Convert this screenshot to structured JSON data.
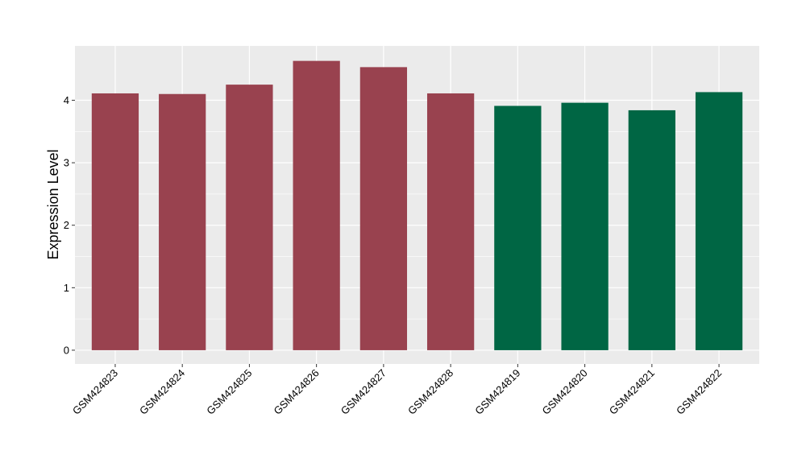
{
  "chart_data": {
    "type": "bar",
    "title": "",
    "xlabel": "",
    "ylabel": "Expression Level",
    "categories": [
      "GSM424823",
      "GSM424824",
      "GSM424825",
      "GSM424826",
      "GSM424827",
      "GSM424828",
      "GSM424819",
      "GSM424820",
      "GSM424821",
      "GSM424822"
    ],
    "values": [
      4.11,
      4.1,
      4.25,
      4.63,
      4.53,
      4.11,
      3.91,
      3.96,
      3.84,
      4.13
    ],
    "bar_groups": [
      0,
      0,
      0,
      0,
      0,
      0,
      1,
      1,
      1,
      1
    ],
    "group_colors": [
      "#99424f",
      "#006644"
    ],
    "yticks": [
      0,
      1,
      2,
      3,
      4
    ],
    "ylim": [
      -0.22,
      4.87
    ],
    "grid": true,
    "legend": "none"
  }
}
